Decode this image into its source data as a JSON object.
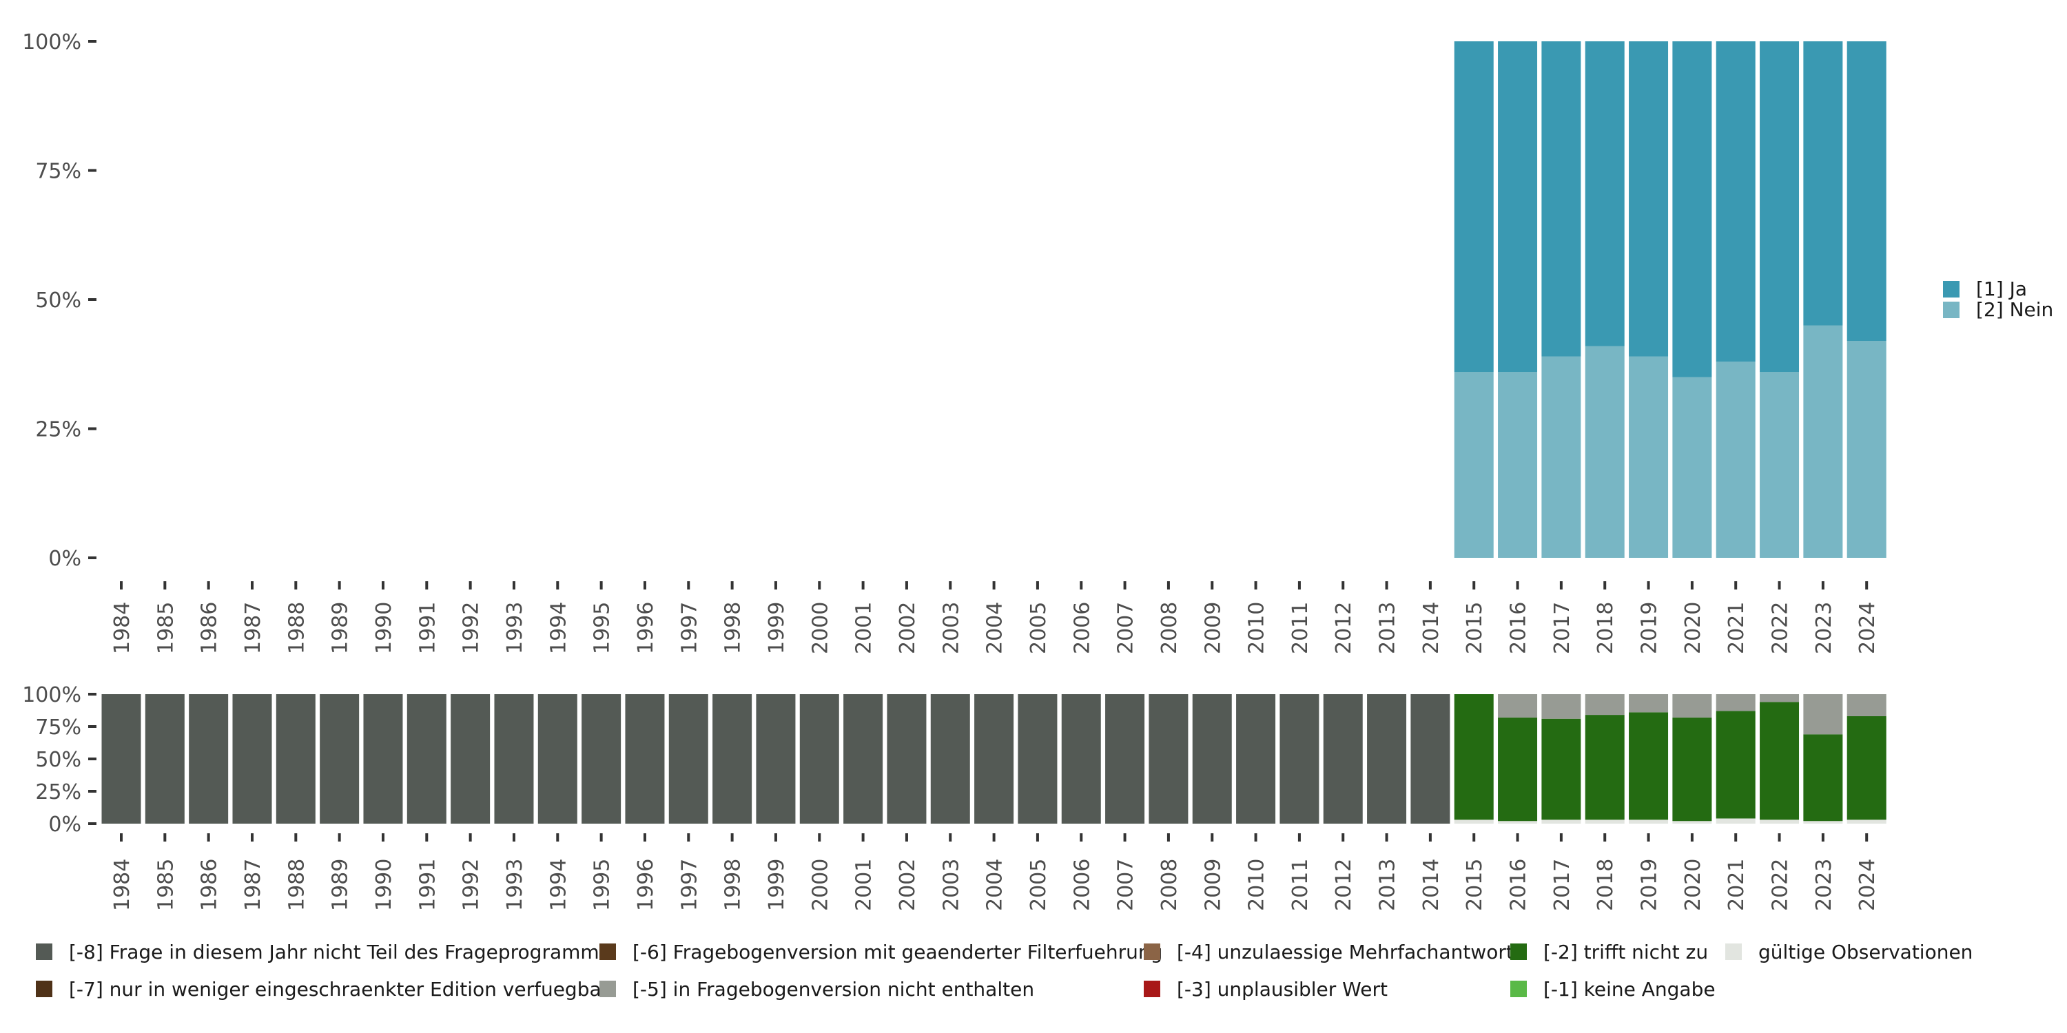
{
  "chart_data": [
    {
      "type": "bar",
      "stacked": true,
      "categories": [
        "1984",
        "1985",
        "1986",
        "1987",
        "1988",
        "1989",
        "1990",
        "1991",
        "1992",
        "1993",
        "1994",
        "1995",
        "1996",
        "1997",
        "1998",
        "1999",
        "2000",
        "2001",
        "2002",
        "2003",
        "2004",
        "2005",
        "2006",
        "2007",
        "2008",
        "2009",
        "2010",
        "2011",
        "2012",
        "2013",
        "2014",
        "2015",
        "2016",
        "2017",
        "2018",
        "2019",
        "2020",
        "2021",
        "2022",
        "2023",
        "2024"
      ],
      "ylim": [
        0,
        100
      ],
      "yticks": [
        "0%",
        "25%",
        "50%",
        "75%",
        "100%"
      ],
      "series": [
        {
          "name": "[2] Nein",
          "color": "#78b6c4",
          "values": [
            null,
            null,
            null,
            null,
            null,
            null,
            null,
            null,
            null,
            null,
            null,
            null,
            null,
            null,
            null,
            null,
            null,
            null,
            null,
            null,
            null,
            null,
            null,
            null,
            null,
            null,
            null,
            null,
            null,
            null,
            null,
            36,
            36,
            39,
            41,
            39,
            35,
            38,
            36,
            45,
            42
          ]
        },
        {
          "name": "[1] Ja",
          "color": "#3a99b2",
          "values": [
            null,
            null,
            null,
            null,
            null,
            null,
            null,
            null,
            null,
            null,
            null,
            null,
            null,
            null,
            null,
            null,
            null,
            null,
            null,
            null,
            null,
            null,
            null,
            null,
            null,
            null,
            null,
            null,
            null,
            null,
            null,
            64,
            64,
            61,
            59,
            61,
            65,
            62,
            64,
            55,
            58
          ]
        }
      ],
      "legend": "right"
    },
    {
      "type": "bar",
      "stacked": true,
      "categories": [
        "1984",
        "1985",
        "1986",
        "1987",
        "1988",
        "1989",
        "1990",
        "1991",
        "1992",
        "1993",
        "1994",
        "1995",
        "1996",
        "1997",
        "1998",
        "1999",
        "2000",
        "2001",
        "2002",
        "2003",
        "2004",
        "2005",
        "2006",
        "2007",
        "2008",
        "2009",
        "2010",
        "2011",
        "2012",
        "2013",
        "2014",
        "2015",
        "2016",
        "2017",
        "2018",
        "2019",
        "2020",
        "2021",
        "2022",
        "2023",
        "2024"
      ],
      "ylim": [
        0,
        100
      ],
      "yticks": [
        "0%",
        "25%",
        "50%",
        "75%",
        "100%"
      ],
      "series": [
        {
          "name": "gültige Observationen",
          "color": "#e2e5e0",
          "values": [
            0,
            0,
            0,
            0,
            0,
            0,
            0,
            0,
            0,
            0,
            0,
            0,
            0,
            0,
            0,
            0,
            0,
            0,
            0,
            0,
            0,
            0,
            0,
            0,
            0,
            0,
            0,
            0,
            0,
            0,
            0,
            3,
            2,
            3,
            3,
            3,
            2,
            4,
            3,
            2,
            3
          ]
        },
        {
          "name": "[-2] trifft nicht zu",
          "color": "#246b12",
          "values": [
            0,
            0,
            0,
            0,
            0,
            0,
            0,
            0,
            0,
            0,
            0,
            0,
            0,
            0,
            0,
            0,
            0,
            0,
            0,
            0,
            0,
            0,
            0,
            0,
            0,
            0,
            0,
            0,
            0,
            0,
            0,
            97,
            80,
            78,
            81,
            83,
            80,
            83,
            91,
            67,
            80
          ]
        },
        {
          "name": "[-5] in Fragebogenversion nicht enthalten",
          "color": "#979b94",
          "values": [
            0,
            0,
            0,
            0,
            0,
            0,
            0,
            0,
            0,
            0,
            0,
            0,
            0,
            0,
            0,
            0,
            0,
            0,
            0,
            0,
            0,
            0,
            0,
            0,
            0,
            0,
            0,
            0,
            0,
            0,
            0,
            0,
            18,
            19,
            16,
            14,
            18,
            13,
            6,
            31,
            17
          ]
        },
        {
          "name": "[-8] Frage in diesem Jahr nicht Teil des Frageprogramms",
          "color": "#545a55",
          "values": [
            100,
            100,
            100,
            100,
            100,
            100,
            100,
            100,
            100,
            100,
            100,
            100,
            100,
            100,
            100,
            100,
            100,
            100,
            100,
            100,
            100,
            100,
            100,
            100,
            100,
            100,
            100,
            100,
            100,
            100,
            100,
            0,
            0,
            0,
            0,
            0,
            0,
            0,
            0,
            0,
            0
          ]
        }
      ]
    }
  ],
  "legend_top": {
    "items": [
      {
        "label": "[1] Ja",
        "color": "#3a99b2"
      },
      {
        "label": "[2] Nein",
        "color": "#78b6c4"
      }
    ]
  },
  "legend_bottom": {
    "items": [
      {
        "label": "[-8] Frage in diesem Jahr nicht Teil des Frageprogramms",
        "color": "#545a55"
      },
      {
        "label": "[-7] nur in weniger eingeschraenkter Edition verfuegbar",
        "color": "#4f3218"
      },
      {
        "label": "[-6] Fragebogenversion mit geaenderter Filterfuehrung",
        "color": "#5a3a1c"
      },
      {
        "label": "[-5] in Fragebogenversion nicht enthalten",
        "color": "#979b94"
      },
      {
        "label": "[-4] unzulaessige Mehrfachantwort",
        "color": "#8b6446"
      },
      {
        "label": "[-3] unplausibler Wert",
        "color": "#a81818"
      },
      {
        "label": "[-2] trifft nicht zu",
        "color": "#246b12"
      },
      {
        "label": "[-1] keine Angabe",
        "color": "#5ab947"
      },
      {
        "label": "gültige Observationen",
        "color": "#e2e5e0"
      }
    ]
  }
}
